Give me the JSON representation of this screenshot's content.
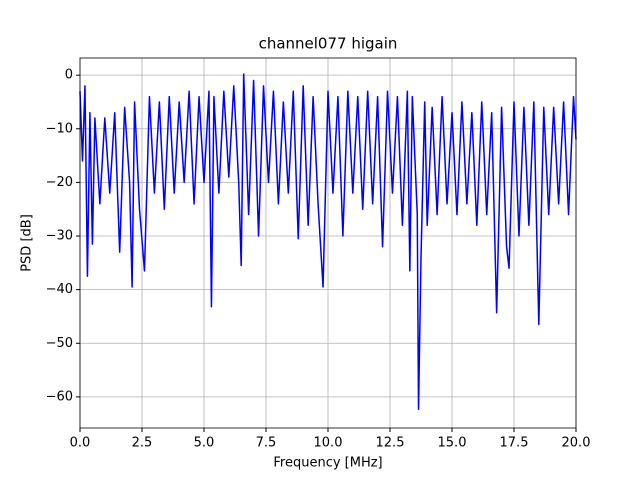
{
  "chart_data": {
    "type": "line",
    "title": "channel077 higain",
    "xlabel": "Frequency [MHz]",
    "ylabel": "PSD [dB]",
    "color": "#0000ff",
    "grid": true,
    "xlim": [
      0,
      20
    ],
    "ylim": [
      -65.8,
      3.2
    ],
    "xticks": [
      {
        "value": 0,
        "label": "0.0"
      },
      2.5,
      {
        "value": 5,
        "label": "5.0"
      },
      7.5,
      {
        "value": 10,
        "label": "10.0"
      },
      12.5,
      {
        "value": 15,
        "label": "15.0"
      },
      17.5,
      {
        "value": 20,
        "label": "20.0"
      }
    ],
    "yticks": [
      0,
      {
        "value": -10,
        "label": "−10"
      },
      {
        "value": -20,
        "label": "−20"
      },
      {
        "value": -30,
        "label": "−30"
      },
      {
        "value": -40,
        "label": "−40"
      },
      {
        "value": -50,
        "label": "−50"
      },
      {
        "value": -60,
        "label": "−60"
      }
    ],
    "x": [
      0,
      0.1,
      0.2,
      0.3,
      0.4,
      0.5,
      0.6,
      0.8,
      1.0,
      1.2,
      1.4,
      1.6,
      1.8,
      2.0,
      2.1,
      2.2,
      2.4,
      2.6,
      2.8,
      3.0,
      3.2,
      3.4,
      3.6,
      3.8,
      4.0,
      4.2,
      4.4,
      4.6,
      4.8,
      5.0,
      5.2,
      5.3,
      5.4,
      5.6,
      5.8,
      6.0,
      6.2,
      6.4,
      6.5,
      6.6,
      6.8,
      7.0,
      7.2,
      7.4,
      7.6,
      7.8,
      8.0,
      8.2,
      8.4,
      8.6,
      8.8,
      9.0,
      9.2,
      9.4,
      9.6,
      9.8,
      10.0,
      10.2,
      10.4,
      10.6,
      10.8,
      11.0,
      11.2,
      11.4,
      11.6,
      11.8,
      12.0,
      12.2,
      12.4,
      12.6,
      12.8,
      13.0,
      13.2,
      13.3,
      13.4,
      13.6,
      13.65,
      13.75,
      13.9,
      14.0,
      14.2,
      14.4,
      14.6,
      14.8,
      15.0,
      15.2,
      15.4,
      15.6,
      15.8,
      16.0,
      16.2,
      16.4,
      16.6,
      16.8,
      17.0,
      17.2,
      17.3,
      17.5,
      17.7,
      17.9,
      18.1,
      18.3,
      18.5,
      18.7,
      18.9,
      19.1,
      19.3,
      19.5,
      19.7,
      19.9,
      20.0
    ],
    "values": [
      -3,
      -16,
      -2,
      -37.5,
      -7,
      -31.5,
      -8,
      -24,
      -8,
      -22,
      -7,
      -33,
      -6,
      -20,
      -39.5,
      -5,
      -25,
      -36.5,
      -4,
      -22,
      -5,
      -25,
      -4,
      -22,
      -5,
      -20,
      -3,
      -24,
      -4,
      -20,
      -3,
      -43.2,
      -4,
      -22,
      -3,
      -19,
      -2,
      -20,
      -35.5,
      0.2,
      -26,
      -1,
      -30,
      -2,
      -20,
      -3,
      -24,
      -5,
      -22,
      -3,
      -30.5,
      -2,
      -28,
      -4,
      -24,
      -39.5,
      -3,
      -22,
      -4,
      -30,
      -3,
      -22,
      -4,
      -25,
      -3,
      -24,
      -4,
      -32,
      -3,
      -22,
      -4,
      -28,
      -3,
      -36.5,
      -4,
      -26,
      -62.3,
      -34,
      -5,
      -28,
      -6,
      -26,
      -4,
      -24,
      -7,
      -26,
      -5,
      -24,
      -7,
      -28,
      -5,
      -26,
      -7,
      -44.3,
      -6,
      -32,
      -36,
      -5,
      -30,
      -6,
      -28,
      -5,
      -46.5,
      -6,
      -26,
      -6,
      -24,
      -5,
      -26,
      -4,
      -12
    ]
  }
}
